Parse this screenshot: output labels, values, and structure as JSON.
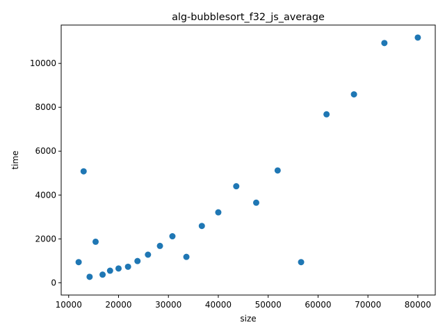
{
  "chart_data": {
    "type": "scatter",
    "title": "alg-bubblesort_f32_js_average",
    "xlabel": "size",
    "ylabel": "time",
    "xlim": [
      8500,
      83500
    ],
    "ylim": [
      -560,
      11750
    ],
    "xticks": [
      10000,
      20000,
      30000,
      40000,
      50000,
      60000,
      70000,
      80000
    ],
    "yticks": [
      0,
      2000,
      4000,
      6000,
      8000,
      10000
    ],
    "grid": false,
    "marker_color": "#1f77b4",
    "points": [
      {
        "x": 12000,
        "y": 940
      },
      {
        "x": 13000,
        "y": 5080
      },
      {
        "x": 14200,
        "y": 270
      },
      {
        "x": 15400,
        "y": 1870
      },
      {
        "x": 16800,
        "y": 370
      },
      {
        "x": 18300,
        "y": 550
      },
      {
        "x": 20000,
        "y": 650
      },
      {
        "x": 21900,
        "y": 730
      },
      {
        "x": 23800,
        "y": 990
      },
      {
        "x": 25900,
        "y": 1280
      },
      {
        "x": 28300,
        "y": 1680
      },
      {
        "x": 30800,
        "y": 2120
      },
      {
        "x": 33600,
        "y": 1180
      },
      {
        "x": 36700,
        "y": 2590
      },
      {
        "x": 40000,
        "y": 3210
      },
      {
        "x": 43600,
        "y": 4400
      },
      {
        "x": 47600,
        "y": 3650
      },
      {
        "x": 51900,
        "y": 5120
      },
      {
        "x": 56600,
        "y": 940
      },
      {
        "x": 61700,
        "y": 7680
      },
      {
        "x": 67200,
        "y": 8590
      },
      {
        "x": 73300,
        "y": 10930
      },
      {
        "x": 80000,
        "y": 11180
      }
    ]
  }
}
